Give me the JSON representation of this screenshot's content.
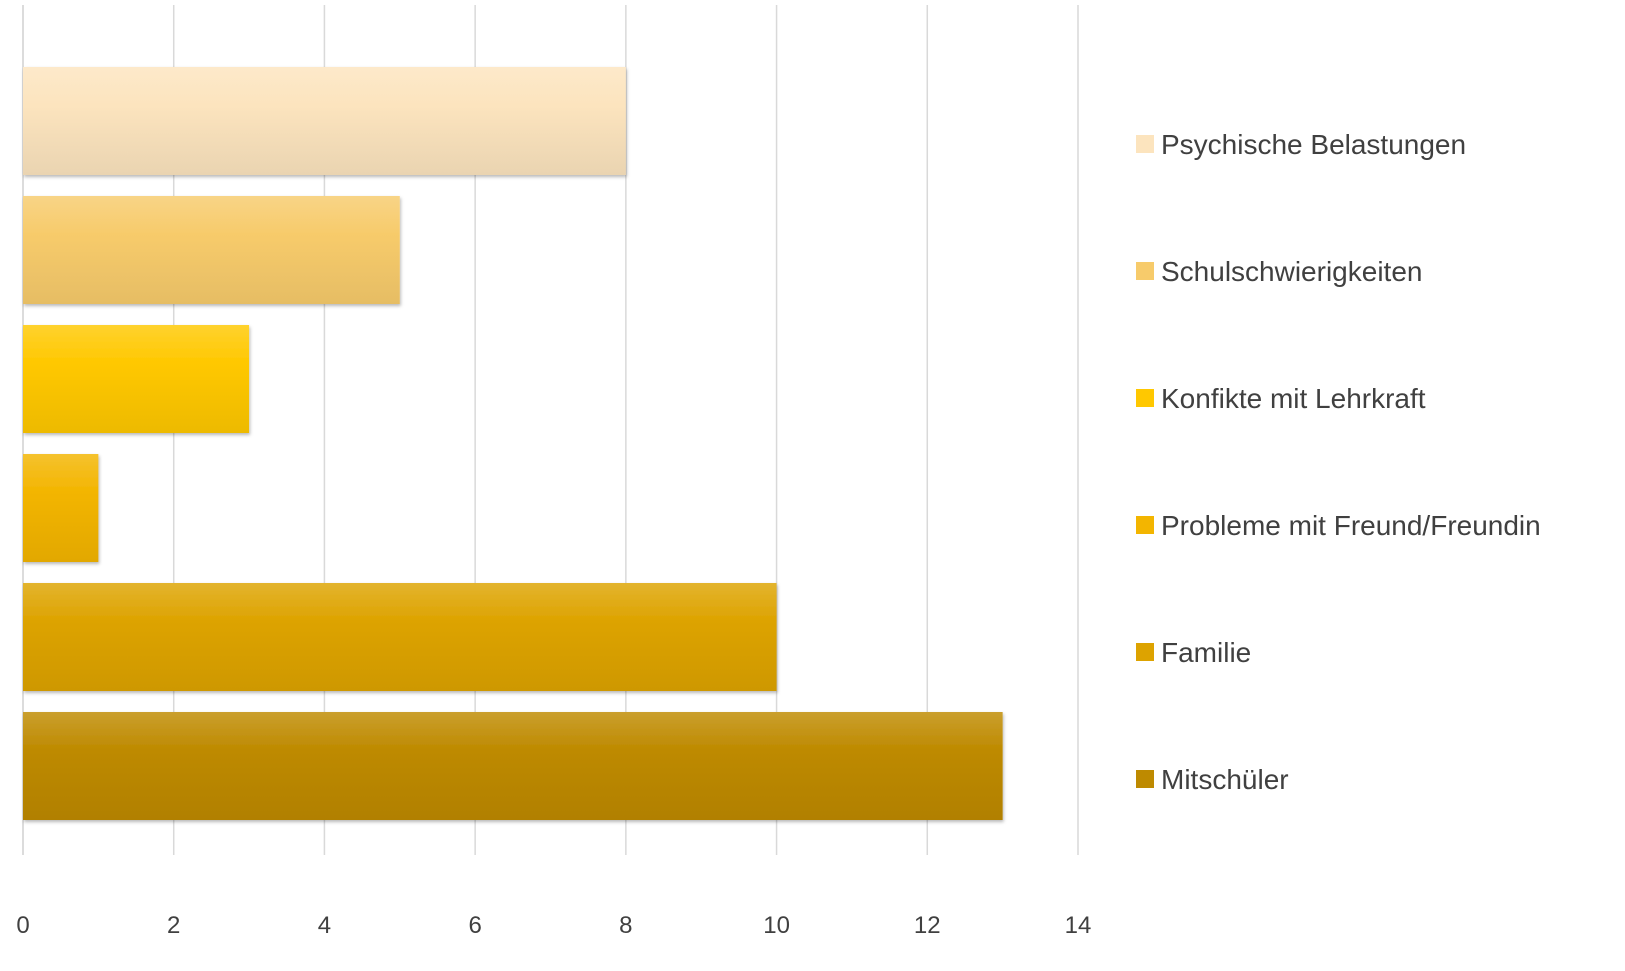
{
  "chart_data": {
    "type": "bar",
    "orientation": "horizontal",
    "categories": [
      "Psychische Belastungen",
      "Schulschwierigkeiten",
      "Konfikte mit Lehrkraft",
      "Probleme mit Freund/Freundin",
      "Familie",
      "Mitschüler"
    ],
    "series": [
      {
        "name": "Psychische Belastungen",
        "value": 8,
        "color": "#FCE4BE"
      },
      {
        "name": "Schulschwierigkeiten",
        "value": 5,
        "color": "#F7CB6B"
      },
      {
        "name": "Konfikte mit Lehrkraft",
        "value": 3,
        "color": "#FFC800"
      },
      {
        "name": "Probleme mit Freund/Freundin",
        "value": 1,
        "color": "#F3B500"
      },
      {
        "name": "Familie",
        "value": 10,
        "color": "#DDA300"
      },
      {
        "name": "Mitschüler",
        "value": 13,
        "color": "#BE8A00"
      }
    ],
    "xlim": [
      0,
      14
    ],
    "xticks": [
      "0",
      "2",
      "4",
      "6",
      "8",
      "10",
      "12",
      "14"
    ],
    "title": "",
    "xlabel": "",
    "ylabel": "",
    "grid": "vertical",
    "legend_position": "right"
  }
}
